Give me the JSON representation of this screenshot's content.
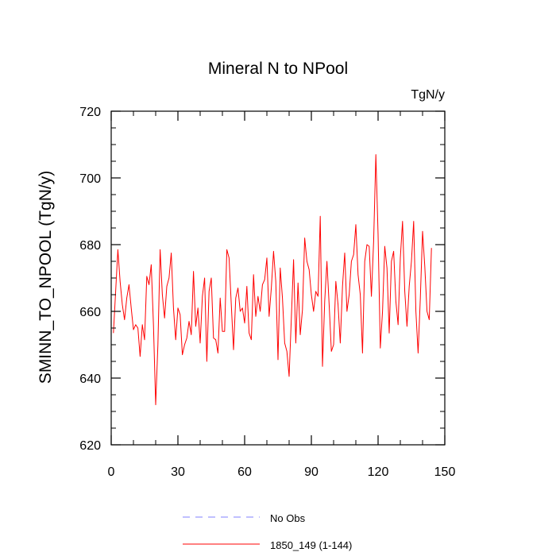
{
  "chart_data": {
    "type": "line",
    "title": "Mineral N to NPool",
    "units": "TgN/y",
    "xlabel": "",
    "ylabel": "SMINN_TO_NPOOL  (TgN/y)",
    "xlim": [
      0,
      150
    ],
    "ylim": [
      620,
      720
    ],
    "xticks": [
      0,
      30,
      60,
      90,
      120,
      150
    ],
    "xtick_labels": [
      "0",
      "30",
      "60",
      "90",
      "120",
      "150"
    ],
    "yticks": [
      620,
      640,
      660,
      680,
      700,
      720
    ],
    "ytick_labels": [
      "620",
      "640",
      "660",
      "680",
      "700",
      "720"
    ],
    "grid": false,
    "legend_position": "bottom-center",
    "series": [
      {
        "name": "No Obs",
        "color": "#8080ff",
        "style": "dashed",
        "x": [],
        "values": []
      },
      {
        "name": "1850_149 (1-144)",
        "color": "#ff0000",
        "style": "solid",
        "x": [
          1,
          2,
          3,
          4,
          5,
          6,
          7,
          8,
          9,
          10,
          11,
          12,
          13,
          14,
          15,
          16,
          17,
          18,
          19,
          20,
          21,
          22,
          23,
          24,
          25,
          26,
          27,
          28,
          29,
          30,
          31,
          32,
          33,
          34,
          35,
          36,
          37,
          38,
          39,
          40,
          41,
          42,
          43,
          44,
          45,
          46,
          47,
          48,
          49,
          50,
          51,
          52,
          53,
          54,
          55,
          56,
          57,
          58,
          59,
          60,
          61,
          62,
          63,
          64,
          65,
          66,
          67,
          68,
          69,
          70,
          71,
          72,
          73,
          74,
          75,
          76,
          77,
          78,
          79,
          80,
          81,
          82,
          83,
          84,
          85,
          86,
          87,
          88,
          89,
          90,
          91,
          92,
          93,
          94,
          95,
          96,
          97,
          98,
          99,
          100,
          101,
          102,
          103,
          104,
          105,
          106,
          107,
          108,
          109,
          110,
          111,
          112,
          113,
          114,
          115,
          116,
          117,
          118,
          119,
          120,
          121,
          122,
          123,
          124,
          125,
          126,
          127,
          128,
          129,
          130,
          131,
          132,
          133,
          134,
          135,
          136,
          137,
          138,
          139,
          140,
          141,
          142,
          143,
          144
        ],
        "values": [
          653.5,
          666.0,
          678.5,
          669.0,
          662.0,
          657.5,
          664.0,
          668.0,
          661.0,
          654.5,
          656.0,
          655.0,
          646.5,
          656.0,
          651.5,
          670.5,
          668.0,
          674.0,
          656.0,
          632.0,
          650.0,
          678.5,
          665.0,
          658.0,
          667.5,
          670.0,
          677.5,
          661.0,
          651.5,
          661.0,
          659.0,
          647.0,
          650.0,
          652.0,
          657.0,
          653.0,
          672.0,
          655.5,
          661.0,
          650.5,
          664.5,
          670.0,
          645.0,
          666.0,
          670.0,
          652.0,
          651.5,
          647.5,
          664.0,
          654.0,
          654.0,
          678.5,
          676.0,
          662.0,
          648.5,
          664.0,
          667.0,
          660.0,
          661.0,
          656.5,
          667.5,
          653.5,
          651.5,
          671.0,
          658.5,
          664.5,
          660.0,
          668.0,
          669.5,
          676.0,
          658.5,
          667.0,
          678.0,
          669.0,
          645.5,
          673.0,
          664.0,
          650.5,
          648.0,
          640.5,
          658.0,
          675.5,
          650.5,
          668.5,
          653.0,
          660.5,
          682.0,
          675.0,
          672.5,
          665.0,
          660.0,
          666.0,
          664.5,
          688.5,
          643.5,
          663.0,
          675.0,
          662.0,
          648.0,
          650.0,
          669.0,
          662.0,
          650.5,
          667.5,
          677.5,
          660.0,
          665.0,
          675.0,
          677.0,
          686.0,
          671.0,
          665.0,
          647.5,
          675.0,
          680.0,
          679.5,
          664.5,
          681.0,
          707.0,
          683.0,
          649.0,
          660.0,
          679.5,
          673.0,
          653.5,
          675.0,
          678.0,
          663.0,
          656.0,
          676.0,
          687.0,
          666.0,
          655.5,
          667.5,
          675.0,
          687.0,
          660.0,
          647.5,
          664.0,
          684.0,
          673.5,
          660.0,
          657.5,
          679.0
        ]
      }
    ]
  }
}
